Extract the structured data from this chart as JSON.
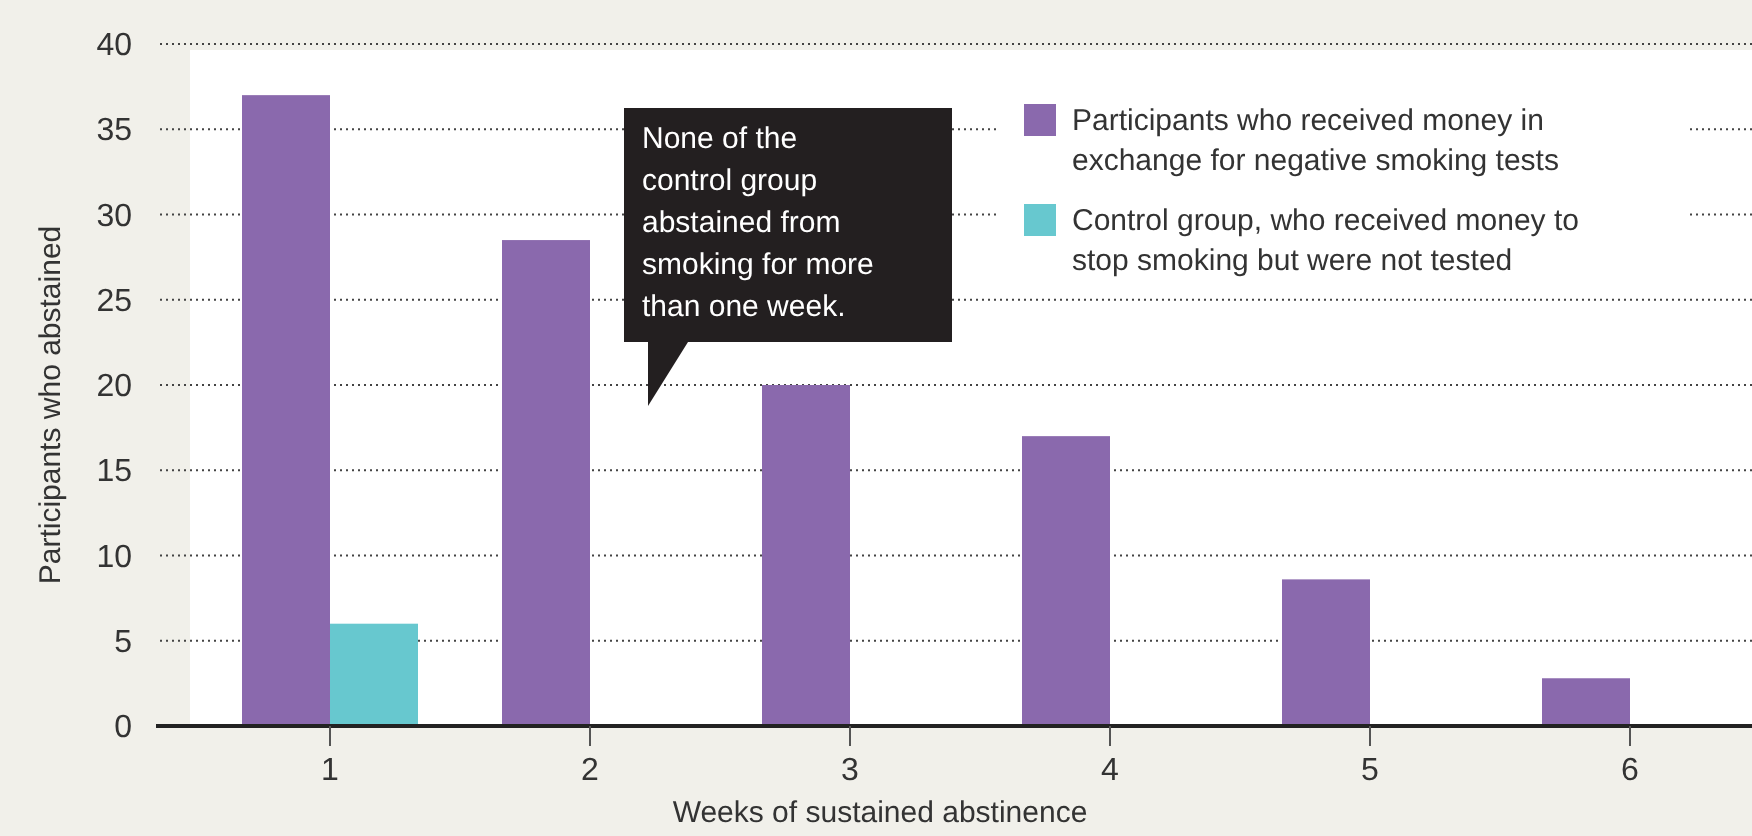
{
  "chart_data": {
    "type": "bar",
    "xlabel": "Weeks of sustained abstinence",
    "ylabel": "Participants who abstained",
    "categories": [
      "1",
      "2",
      "3",
      "4",
      "5",
      "6"
    ],
    "series": [
      {
        "name": "Participants who received money in exchange for negative smoking tests",
        "color": "#8a69ad",
        "values": [
          37,
          28.5,
          20,
          17,
          8.6,
          2.8
        ]
      },
      {
        "name": "Control group, who received money to stop smoking but were not tested",
        "color": "#67c8cf",
        "values": [
          6,
          0,
          0,
          0,
          0,
          0
        ]
      }
    ],
    "ylim": [
      0,
      40
    ],
    "yticks": [
      0,
      5,
      10,
      15,
      20,
      25,
      30,
      35,
      40
    ],
    "grid": "y",
    "legend": "top right",
    "annotations": [
      "None of the control group abstained from smoking for more than one week."
    ]
  }
}
